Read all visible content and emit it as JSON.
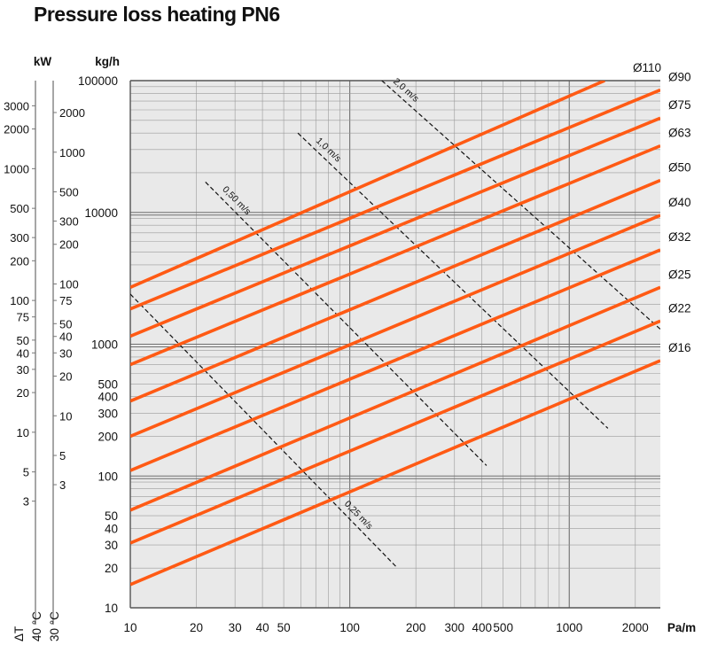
{
  "title": "Pressure loss heating PN6",
  "chart_data": {
    "type": "line",
    "title": "Pressure loss heating PN6",
    "xlabel": "Pa/m",
    "ylabel": "kg/h",
    "x_scale": "log",
    "y_scale": "log",
    "xlim": [
      10,
      2600
    ],
    "ylim": [
      10,
      100000
    ],
    "x_ticks": [
      10,
      20,
      30,
      40,
      50,
      100,
      200,
      300,
      400,
      500,
      1000,
      2000
    ],
    "x_tick_labels": [
      "10",
      "20",
      "30",
      "40",
      "50",
      "100",
      "200",
      "300",
      "400",
      "500",
      "1000",
      "2000"
    ],
    "y_ticks": [
      10,
      20,
      30,
      40,
      50,
      100,
      200,
      300,
      400,
      500,
      1000,
      10000,
      100000
    ],
    "y_tick_labels": [
      "10",
      "20",
      "30",
      "40",
      "50",
      "100",
      "200",
      "300",
      "400",
      "500",
      "1000",
      "10000",
      "100000"
    ],
    "grid": true,
    "series": [
      {
        "name": "Ø110",
        "color": "#ff5a14",
        "x": [
          10,
          1450
        ],
        "y": [
          2700,
          100000
        ]
      },
      {
        "name": "Ø90",
        "color": "#ff5a14",
        "x": [
          10,
          2600
        ],
        "y": [
          1850,
          85000
        ]
      },
      {
        "name": "Ø75",
        "color": "#ff5a14",
        "x": [
          10,
          2600
        ],
        "y": [
          1150,
          52000
        ]
      },
      {
        "name": "Ø63",
        "color": "#ff5a14",
        "x": [
          10,
          2600
        ],
        "y": [
          700,
          32000
        ]
      },
      {
        "name": "Ø50",
        "color": "#ff5a14",
        "x": [
          10,
          2600
        ],
        "y": [
          370,
          17500
        ]
      },
      {
        "name": "Ø40",
        "color": "#ff5a14",
        "x": [
          10,
          2600
        ],
        "y": [
          200,
          9500
        ]
      },
      {
        "name": "Ø32",
        "color": "#ff5a14",
        "x": [
          10,
          2600
        ],
        "y": [
          110,
          5200
        ]
      },
      {
        "name": "Ø25",
        "color": "#ff5a14",
        "x": [
          10,
          2600
        ],
        "y": [
          55,
          2700
        ]
      },
      {
        "name": "Ø22",
        "color": "#ff5a14",
        "x": [
          10,
          2600
        ],
        "y": [
          31,
          1500
        ]
      },
      {
        "name": "Ø16",
        "color": "#ff5a14",
        "x": [
          10,
          2600
        ],
        "y": [
          15,
          750
        ]
      }
    ],
    "velocity_lines": [
      {
        "label": "2,0 m/s",
        "x": [
          140,
          2600
        ],
        "y": [
          100000,
          1300
        ]
      },
      {
        "label": "1,0 m/s",
        "x": [
          58,
          1500
        ],
        "y": [
          40000,
          230
        ]
      },
      {
        "label": "0,50 m/s",
        "x": [
          22,
          420
        ],
        "y": [
          17000,
          120
        ]
      },
      {
        "label": "0,25 m/s",
        "x": [
          10,
          165
        ],
        "y": [
          2400,
          20
        ]
      }
    ],
    "secondary_axes": [
      {
        "label": "kW",
        "dT_label": "40 °C",
        "ticks": [
          3000,
          2000,
          1000,
          500,
          300,
          200,
          100,
          75,
          50,
          40,
          30,
          20,
          10,
          5,
          3
        ],
        "tick_labels": [
          "3000",
          "2000",
          "1000",
          "500",
          "300",
          "200",
          "100",
          "75",
          "50",
          "40",
          "30",
          "20",
          "10",
          "5",
          "3"
        ]
      },
      {
        "label": "",
        "dT_label": "30 °C",
        "ticks": [
          2000,
          1000,
          500,
          300,
          200,
          100,
          75,
          50,
          40,
          30,
          20,
          10,
          5,
          3
        ],
        "tick_labels": [
          "2000",
          "1000",
          "500",
          "300",
          "200",
          "100",
          "75",
          "50",
          "40",
          "30",
          "20",
          "10",
          "5",
          "3"
        ]
      }
    ],
    "delta_t_label": "ΔT",
    "colors": {
      "pipe": "#ff5a14",
      "plot_bg": "#e9e9e9",
      "grid": "#9a9a9a",
      "velocity": "#111111"
    }
  }
}
